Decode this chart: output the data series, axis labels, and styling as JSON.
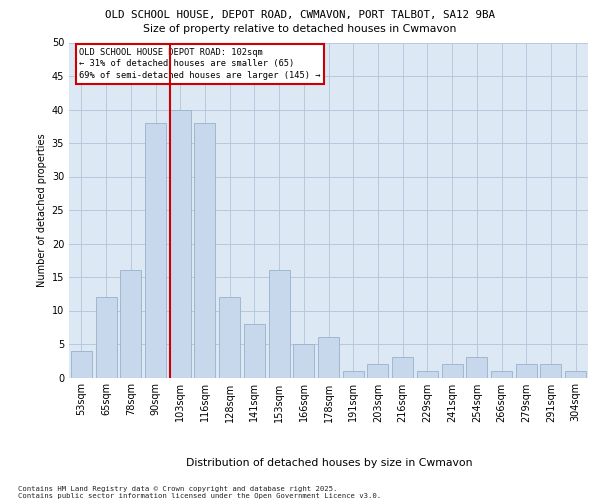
{
  "title_line1": "OLD SCHOOL HOUSE, DEPOT ROAD, CWMAVON, PORT TALBOT, SA12 9BA",
  "title_line2": "Size of property relative to detached houses in Cwmavon",
  "xlabel": "Distribution of detached houses by size in Cwmavon",
  "ylabel": "Number of detached properties",
  "categories": [
    "53sqm",
    "65sqm",
    "78sqm",
    "90sqm",
    "103sqm",
    "116sqm",
    "128sqm",
    "141sqm",
    "153sqm",
    "166sqm",
    "178sqm",
    "191sqm",
    "203sqm",
    "216sqm",
    "229sqm",
    "241sqm",
    "254sqm",
    "266sqm",
    "279sqm",
    "291sqm",
    "304sqm"
  ],
  "values": [
    4,
    12,
    16,
    38,
    40,
    38,
    12,
    8,
    16,
    5,
    6,
    1,
    2,
    3,
    1,
    2,
    3,
    1,
    2,
    2,
    1
  ],
  "bar_color": "#c8d8ec",
  "bar_edge_color": "#9ab0cc",
  "grid_color": "#b8c8dc",
  "background_color": "#dce8f4",
  "vline_color": "#cc0000",
  "vline_bar_index": 4,
  "annotation_line1": "OLD SCHOOL HOUSE DEPOT ROAD: 102sqm",
  "annotation_line2": "← 31% of detached houses are smaller (65)",
  "annotation_line3": "69% of semi-detached houses are larger (145) →",
  "footnote_line1": "Contains HM Land Registry data © Crown copyright and database right 2025.",
  "footnote_line2": "Contains public sector information licensed under the Open Government Licence v3.0.",
  "ylim": [
    0,
    50
  ],
  "yticks": [
    0,
    5,
    10,
    15,
    20,
    25,
    30,
    35,
    40,
    45,
    50
  ]
}
